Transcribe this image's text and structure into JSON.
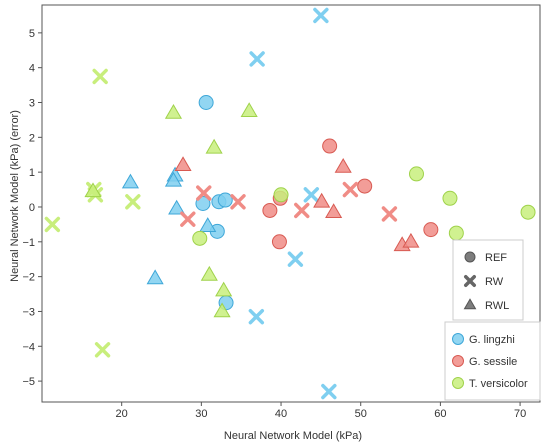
{
  "chart_data": {
    "type": "scatter",
    "title": "",
    "xlabel": "Neural Network Model (kPa)",
    "ylabel": "Neural Network Model (kPa) (error)",
    "xlim": [
      10,
      72.5
    ],
    "ylim": [
      -5.6,
      5.8
    ],
    "xticks": [
      20,
      30,
      40,
      50,
      60,
      70
    ],
    "yticks": [
      -5,
      -4,
      -3,
      -2,
      -1,
      0,
      1,
      2,
      3,
      4,
      5
    ],
    "grid": false,
    "legends": [
      {
        "placement": "bottom-right",
        "entries": [
          {
            "label": "REF",
            "marker": "circle"
          },
          {
            "label": "RW",
            "marker": "x"
          },
          {
            "label": "RWL",
            "marker": "triangle"
          }
        ]
      },
      {
        "placement": "bottom-right",
        "entries": [
          {
            "label": "G. lingzhi",
            "color": "#7fcff0"
          },
          {
            "label": "G. sessile",
            "color": "#f08c86"
          },
          {
            "label": "T. versicolor",
            "color": "#c8ee7c"
          }
        ]
      }
    ],
    "series": [
      {
        "name": "G. lingzhi",
        "color": "#7fcff0",
        "edge": "#3ea7d8",
        "points": [
          {
            "x": 30.6,
            "y": 3.0,
            "marker": "circle"
          },
          {
            "x": 30.2,
            "y": 0.1,
            "marker": "circle"
          },
          {
            "x": 32.2,
            "y": 0.15,
            "marker": "circle"
          },
          {
            "x": 33.0,
            "y": 0.2,
            "marker": "circle"
          },
          {
            "x": 32.0,
            "y": -0.7,
            "marker": "circle"
          },
          {
            "x": 33.1,
            "y": -2.75,
            "marker": "circle"
          },
          {
            "x": 45.0,
            "y": 5.5,
            "marker": "x"
          },
          {
            "x": 37.0,
            "y": 4.25,
            "marker": "x"
          },
          {
            "x": 43.8,
            "y": 0.35,
            "marker": "x"
          },
          {
            "x": 41.8,
            "y": -1.5,
            "marker": "x"
          },
          {
            "x": 36.9,
            "y": -3.15,
            "marker": "x"
          },
          {
            "x": 46.0,
            "y": -5.3,
            "marker": "x"
          },
          {
            "x": 21.1,
            "y": 0.7,
            "marker": "triangle"
          },
          {
            "x": 26.7,
            "y": 0.9,
            "marker": "triangle"
          },
          {
            "x": 26.5,
            "y": 0.75,
            "marker": "triangle"
          },
          {
            "x": 26.9,
            "y": -0.05,
            "marker": "triangle"
          },
          {
            "x": 30.8,
            "y": -0.55,
            "marker": "triangle"
          },
          {
            "x": 24.2,
            "y": -2.05,
            "marker": "triangle"
          }
        ]
      },
      {
        "name": "G. sessile",
        "color": "#f08c86",
        "edge": "#d85a52",
        "points": [
          {
            "x": 46.1,
            "y": 1.75,
            "marker": "circle"
          },
          {
            "x": 50.5,
            "y": 0.6,
            "marker": "circle"
          },
          {
            "x": 39.9,
            "y": 0.25,
            "marker": "circle"
          },
          {
            "x": 38.6,
            "y": -0.1,
            "marker": "circle"
          },
          {
            "x": 39.8,
            "y": -1.0,
            "marker": "circle"
          },
          {
            "x": 58.8,
            "y": -0.65,
            "marker": "circle"
          },
          {
            "x": 48.7,
            "y": 0.5,
            "marker": "x"
          },
          {
            "x": 30.3,
            "y": 0.4,
            "marker": "x"
          },
          {
            "x": 34.6,
            "y": 0.15,
            "marker": "x"
          },
          {
            "x": 42.6,
            "y": -0.1,
            "marker": "x"
          },
          {
            "x": 53.6,
            "y": -0.2,
            "marker": "x"
          },
          {
            "x": 28.3,
            "y": -0.35,
            "marker": "x"
          },
          {
            "x": 27.7,
            "y": 1.2,
            "marker": "triangle"
          },
          {
            "x": 47.8,
            "y": 1.15,
            "marker": "triangle"
          },
          {
            "x": 45.1,
            "y": 0.15,
            "marker": "triangle"
          },
          {
            "x": 46.6,
            "y": -0.15,
            "marker": "triangle"
          },
          {
            "x": 55.2,
            "y": -1.1,
            "marker": "triangle"
          },
          {
            "x": 56.3,
            "y": -1.0,
            "marker": "triangle"
          }
        ]
      },
      {
        "name": "T. versicolor",
        "color": "#c8ee7c",
        "edge": "#9fd24a",
        "points": [
          {
            "x": 40.0,
            "y": 0.35,
            "marker": "circle"
          },
          {
            "x": 57.0,
            "y": 0.95,
            "marker": "circle"
          },
          {
            "x": 61.2,
            "y": 0.25,
            "marker": "circle"
          },
          {
            "x": 62.0,
            "y": -0.75,
            "marker": "circle"
          },
          {
            "x": 71.0,
            "y": -0.15,
            "marker": "circle"
          },
          {
            "x": 29.8,
            "y": -0.9,
            "marker": "circle"
          },
          {
            "x": 17.3,
            "y": 3.75,
            "marker": "x"
          },
          {
            "x": 16.5,
            "y": 0.5,
            "marker": "x"
          },
          {
            "x": 16.7,
            "y": 0.35,
            "marker": "x"
          },
          {
            "x": 21.4,
            "y": 0.15,
            "marker": "x"
          },
          {
            "x": 11.3,
            "y": -0.5,
            "marker": "x"
          },
          {
            "x": 17.6,
            "y": -4.1,
            "marker": "x"
          },
          {
            "x": 26.5,
            "y": 2.7,
            "marker": "triangle"
          },
          {
            "x": 36.0,
            "y": 2.75,
            "marker": "triangle"
          },
          {
            "x": 31.6,
            "y": 1.7,
            "marker": "triangle"
          },
          {
            "x": 16.4,
            "y": 0.45,
            "marker": "triangle"
          },
          {
            "x": 31.0,
            "y": -1.95,
            "marker": "triangle"
          },
          {
            "x": 32.8,
            "y": -2.4,
            "marker": "triangle"
          },
          {
            "x": 32.6,
            "y": -3.0,
            "marker": "triangle"
          }
        ]
      }
    ]
  }
}
